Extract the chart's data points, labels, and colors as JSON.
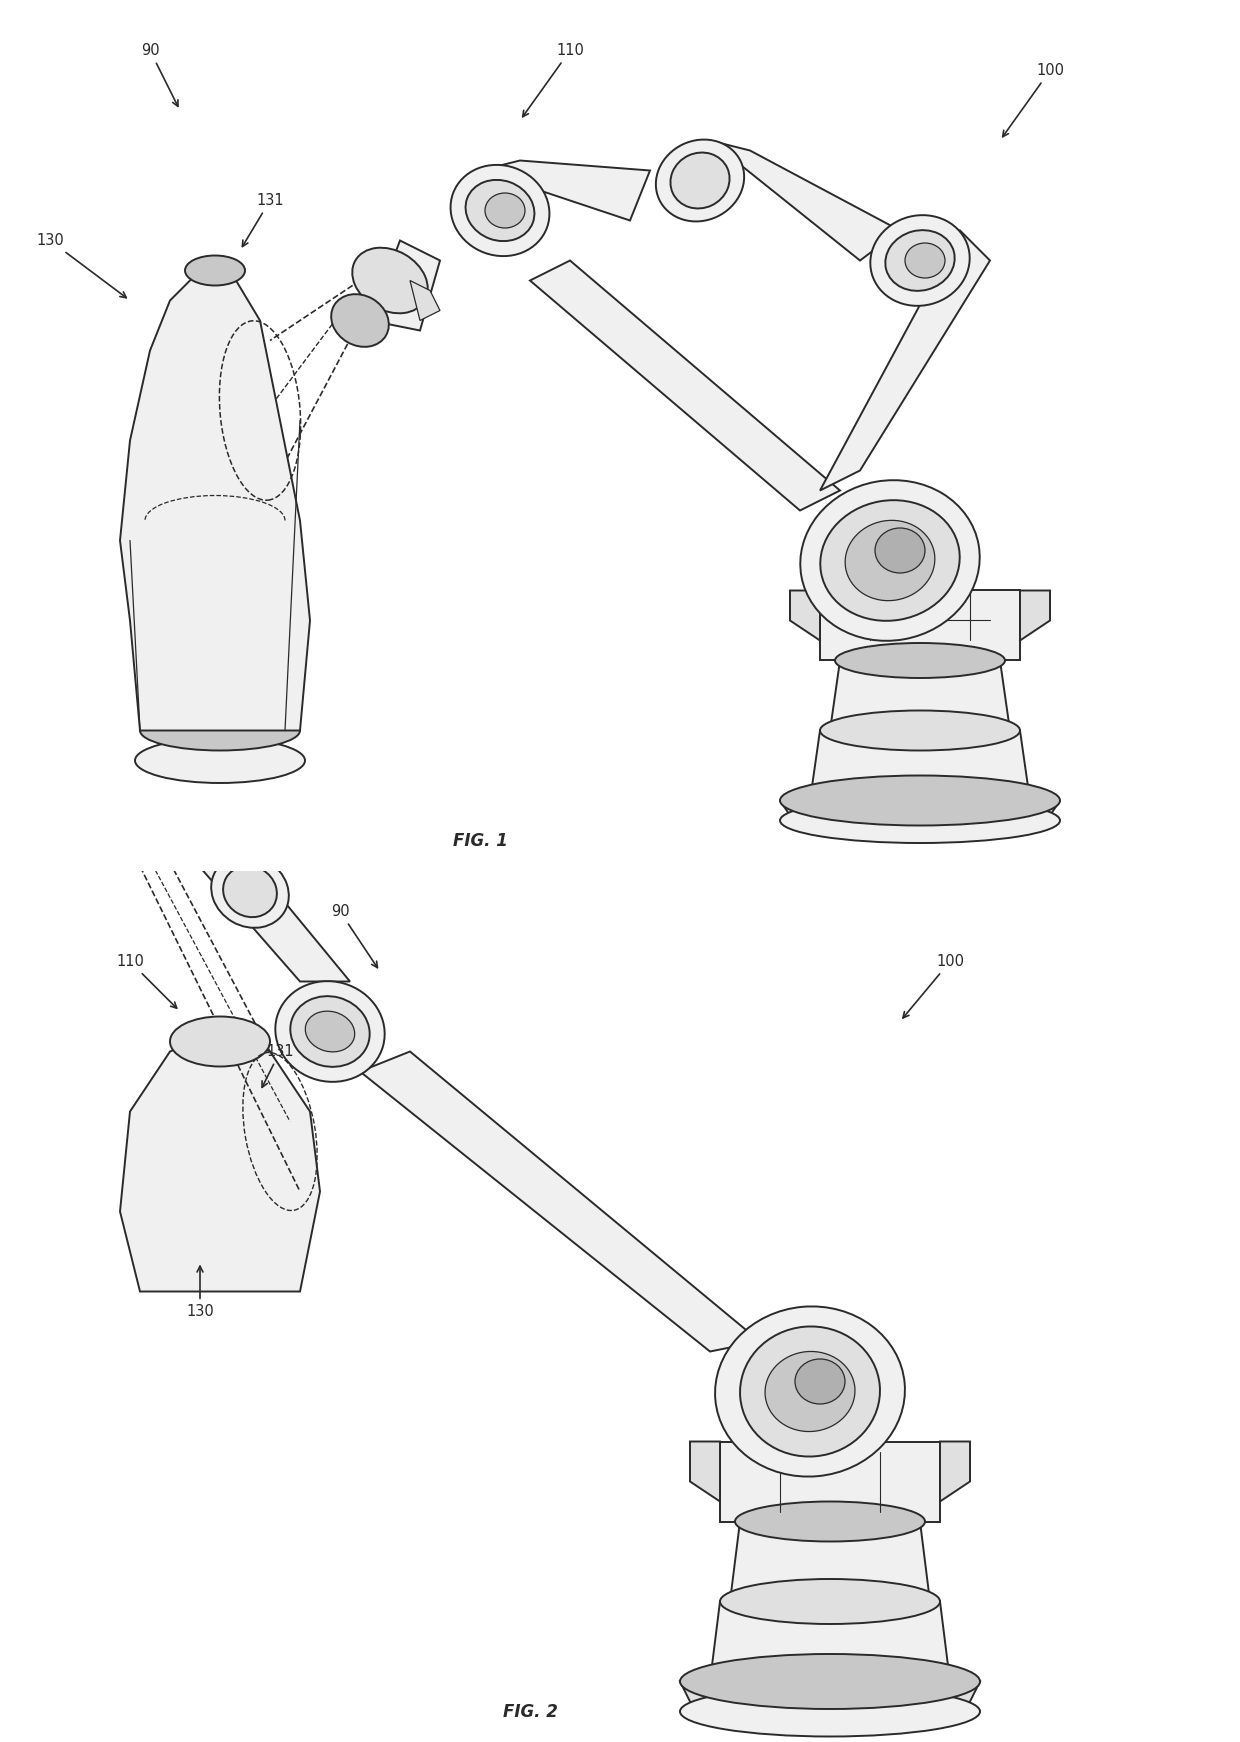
{
  "fig_width": 12.4,
  "fig_height": 17.42,
  "dpi": 100,
  "bg_color": "#ffffff",
  "lc": "#2a2a2a",
  "lw_main": 1.4,
  "lw_thin": 0.9,
  "fill_light": "#f0f0f0",
  "fill_mid": "#e0e0e0",
  "fill_dark": "#c8c8c8",
  "fill_darker": "#b0b0b0",
  "font_size_label": 10.5,
  "font_size_fig": 12,
  "fig1_label": "FIG. 1",
  "fig2_label": "FIG. 2"
}
